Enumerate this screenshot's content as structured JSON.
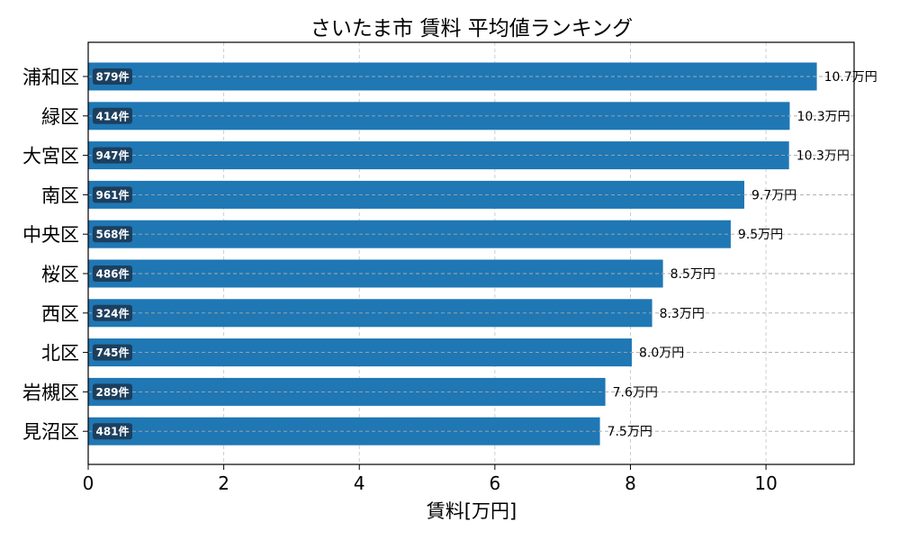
{
  "chart_data": {
    "type": "bar",
    "orientation": "horizontal",
    "title": "さいたま市 賃料 平均値ランキング",
    "xlabel": "賃料[万円]",
    "ylabel": "",
    "xlim": [
      0,
      11.3
    ],
    "xticks": [
      "0",
      "2",
      "4",
      "6",
      "8",
      "10"
    ],
    "grid": true,
    "bar_color": "#1f77b4",
    "count_badge_color": "#1c3f5e",
    "categories": [
      "浦和区",
      "緑区",
      "大宮区",
      "南区",
      "中央区",
      "桜区",
      "西区",
      "北区",
      "岩槻区",
      "見沼区"
    ],
    "values": [
      10.75,
      10.35,
      10.34,
      9.68,
      9.48,
      8.48,
      8.32,
      8.02,
      7.63,
      7.55
    ],
    "value_labels": [
      "10.7万円",
      "10.3万円",
      "10.3万円",
      "9.7万円",
      "9.5万円",
      "8.5万円",
      "8.3万円",
      "8.0万円",
      "7.6万円",
      "7.5万円"
    ],
    "count_labels": [
      "879件",
      "414件",
      "947件",
      "961件",
      "568件",
      "486件",
      "324件",
      "745件",
      "289件",
      "481件"
    ]
  }
}
